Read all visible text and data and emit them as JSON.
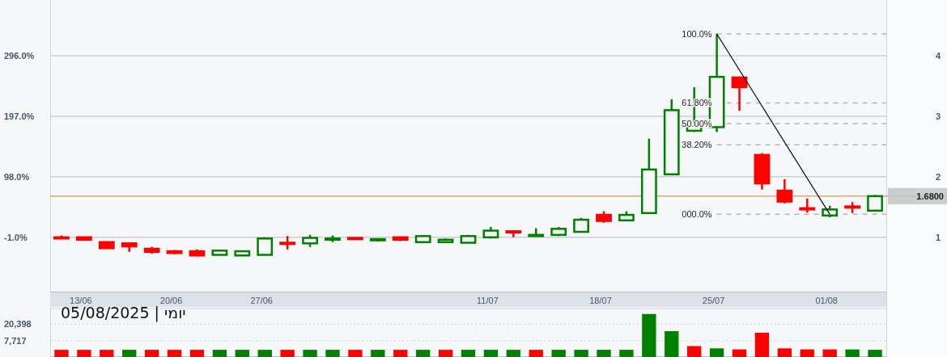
{
  "chart_data": [
    {
      "type": "candlestick",
      "categories": [
        null,
        "13/06",
        null,
        null,
        null,
        "20/06",
        null,
        null,
        null,
        "27/06",
        null,
        null,
        null,
        null,
        null,
        null,
        null,
        null,
        null,
        "11/07",
        null,
        null,
        null,
        null,
        "18/07",
        null,
        null,
        null,
        null,
        "25/07",
        null,
        null,
        null,
        null,
        "01/08",
        null,
        null
      ],
      "ohlc": [
        [
          1.0,
          1.03,
          0.99,
          0.99
        ],
        [
          1.0,
          1.0,
          0.95,
          0.96
        ],
        [
          0.92,
          0.93,
          0.82,
          0.82
        ],
        [
          0.9,
          0.91,
          0.76,
          0.85
        ],
        [
          0.81,
          0.84,
          0.73,
          0.76
        ],
        [
          0.77,
          0.79,
          0.72,
          0.74
        ],
        [
          0.77,
          0.8,
          0.7,
          0.7
        ],
        [
          0.71,
          0.78,
          0.71,
          0.78
        ],
        [
          0.7,
          0.77,
          0.7,
          0.77
        ],
        [
          0.71,
          1.0,
          0.71,
          0.98
        ],
        [
          0.91,
          1.02,
          0.8,
          0.89
        ],
        [
          0.9,
          1.04,
          0.84,
          0.99
        ],
        [
          0.97,
          1.03,
          0.92,
          0.98
        ],
        [
          0.99,
          0.99,
          0.98,
          0.98
        ],
        [
          0.96,
          0.97,
          0.93,
          0.97
        ],
        [
          1.0,
          1.0,
          0.94,
          0.96
        ],
        [
          0.92,
          1.02,
          0.92,
          1.02
        ],
        [
          0.92,
          0.98,
          0.92,
          0.96
        ],
        [
          0.91,
          1.04,
          0.91,
          1.02
        ],
        [
          1.0,
          1.17,
          0.98,
          1.11
        ],
        [
          1.1,
          1.1,
          1.0,
          1.08
        ],
        [
          1.02,
          1.15,
          1.02,
          1.04
        ],
        [
          1.04,
          1.17,
          1.02,
          1.14
        ],
        [
          1.09,
          1.32,
          1.09,
          1.29
        ],
        [
          1.37,
          1.43,
          1.24,
          1.27
        ],
        [
          1.28,
          1.43,
          1.28,
          1.37
        ],
        [
          1.4,
          2.63,
          1.4,
          2.12
        ],
        [
          2.04,
          3.28,
          2.04,
          3.1
        ],
        [
          2.76,
          3.48,
          2.74,
          2.84
        ],
        [
          2.82,
          4.36,
          2.74,
          3.65
        ],
        [
          3.64,
          3.64,
          3.09,
          3.48
        ],
        [
          2.36,
          2.39,
          1.79,
          1.89
        ],
        [
          1.77,
          1.96,
          1.56,
          1.59
        ],
        [
          1.48,
          1.64,
          1.41,
          1.47
        ],
        [
          1.36,
          1.52,
          1.33,
          1.46
        ],
        [
          1.51,
          1.58,
          1.4,
          1.49
        ],
        [
          1.44,
          1.7,
          1.44,
          1.68
        ]
      ],
      "colors": [
        "#ff0000",
        "#ff0000",
        "#ff0000",
        "#ff0000",
        "#ff0000",
        "#ff0000",
        "#ff0000",
        "#008000",
        "#008000",
        "#008000",
        "#ff0000",
        "#008000",
        "#008000",
        "#ff0000",
        "#008000",
        "#ff0000",
        "#008000",
        "#008000",
        "#008000",
        "#008000",
        "#ff0000",
        "#008000",
        "#008000",
        "#008000",
        "#ff0000",
        "#008000",
        "#008000",
        "#008000",
        "#008000",
        "#008000",
        "#ff0000",
        "#ff0000",
        "#ff0000",
        "#ff0000",
        "#008000",
        "#ff0000",
        "#008000"
      ],
      "ylim": [
        0.09,
        4.92
      ],
      "yticks": [
        1,
        2,
        3,
        4
      ],
      "y2lim": [
        -91.1,
        387.1
      ],
      "y2ticks": [
        {
          "value": -1,
          "label": "-1.0%"
        },
        {
          "value": 98,
          "label": "98.0%"
        },
        {
          "value": 197,
          "label": "197.0%"
        },
        {
          "value": 296,
          "label": "296.0%"
        }
      ],
      "grid": "y",
      "series": [
        {
          "type": "line",
          "color": "#000000",
          "x": [
            "25/07",
            "01/08"
          ],
          "values": [
            4.36,
            1.38
          ]
        }
      ],
      "ref_lines": [
        {
          "axis": "y",
          "value": 4.36,
          "color": "#b4b4b4",
          "line_style": "dashed"
        },
        {
          "axis": "y",
          "value": 3.22,
          "color": "#b4b4b4",
          "line_style": "dashed"
        },
        {
          "axis": "y",
          "value": 2.88,
          "color": "#b4b4b4",
          "line_style": "dashed"
        },
        {
          "axis": "y",
          "value": 2.53,
          "color": "#b4b4b4",
          "line_style": "dashed"
        },
        {
          "axis": "y",
          "value": 1.38,
          "color": "#b4b4b4",
          "line_style": "dashed"
        },
        {
          "axis": "y",
          "value": 1.68,
          "label": "1.6800",
          "color": "#d9822b",
          "line_style": "solid"
        }
      ],
      "annotations": [
        {
          "text": "100.0%",
          "x": "25/07",
          "y": 4.36
        },
        {
          "text": "61.80%",
          "x": "25/07",
          "y": 3.22
        },
        {
          "text": "50.00%",
          "x": "25/07",
          "y": 2.88
        },
        {
          "text": "38.20%",
          "x": "25/07",
          "y": 2.53
        },
        {
          "text": "000.0%",
          "x": "25/07",
          "y": 1.38
        }
      ]
    },
    {
      "type": "bar",
      "title": "05/08/2025 | יומי",
      "categories": [
        null,
        null,
        null,
        null,
        null,
        null,
        null,
        null,
        null,
        null,
        null,
        null,
        null,
        null,
        null,
        null,
        null,
        null,
        null,
        null,
        null,
        null,
        null,
        null,
        null,
        null,
        null,
        null,
        null,
        null,
        null,
        null,
        null,
        null,
        null,
        null,
        null
      ],
      "values": [
        4500,
        4500,
        4500,
        4500,
        4500,
        4500,
        4500,
        4500,
        4500,
        4500,
        4500,
        4500,
        4500,
        4500,
        4500,
        4500,
        4500,
        4500,
        4500,
        4500,
        4500,
        4500,
        4500,
        4500,
        4500,
        4500,
        37000,
        13500,
        5600,
        4900,
        4600,
        12300,
        4900,
        4600,
        4600,
        4600,
        4500
      ],
      "colors": [
        "#ff0000",
        "#ff0000",
        "#ff0000",
        "#008000",
        "#ff0000",
        "#ff0000",
        "#ff0000",
        "#008000",
        "#008000",
        "#008000",
        "#ff0000",
        "#008000",
        "#008000",
        "#ff0000",
        "#008000",
        "#ff0000",
        "#008000",
        "#ff0000",
        "#008000",
        "#008000",
        "#008000",
        "#ff0000",
        "#008000",
        "#008000",
        "#008000",
        "#008000",
        "#008000",
        "#008000",
        "#ff0000",
        "#008000",
        "#ff0000",
        "#ff0000",
        "#ff0000",
        "#ff0000",
        "#ff0000",
        "#008000",
        "#008000"
      ],
      "log": true,
      "ylim": [
        2950,
        51000
      ],
      "yticks": [
        {
          "value": 7717,
          "label": "7,717"
        },
        {
          "value": 20398,
          "label": "20,398"
        }
      ],
      "tick_labels": "y",
      "grid": "y"
    }
  ]
}
